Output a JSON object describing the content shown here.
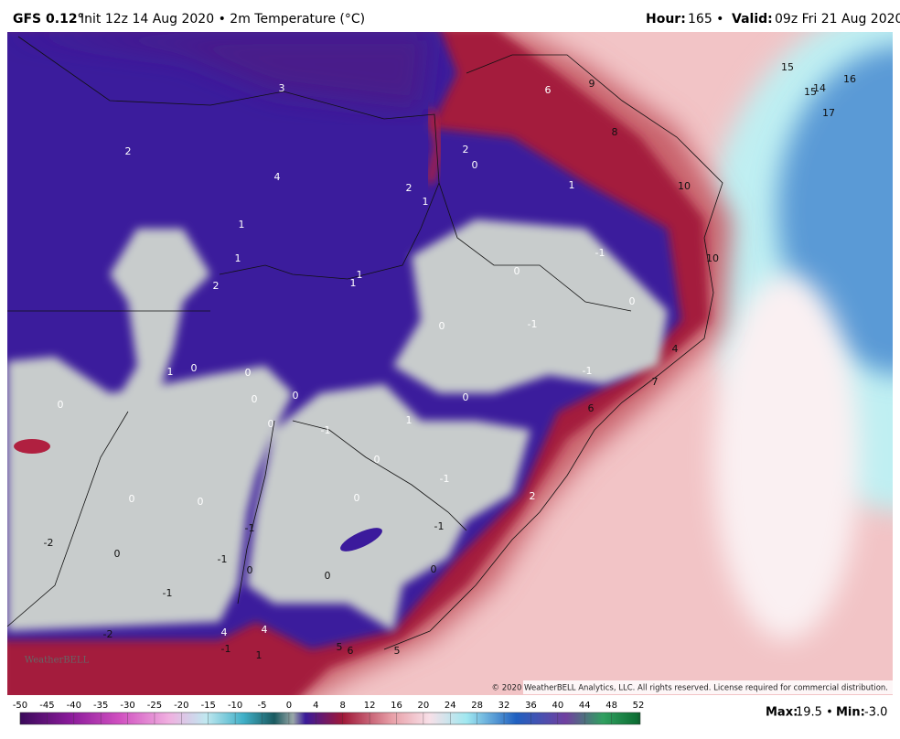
{
  "header": {
    "model": "GFS 0.12°",
    "info": "Init 12z 14 Aug 2020 • 2m Temperature (°C)",
    "hour_label": "Hour:",
    "hour": "165 •",
    "valid_label": "Valid:",
    "valid": "09z Fri 21 Aug 2020"
  },
  "map_labels": [
    "3",
    "6",
    "9",
    "8",
    "2",
    "2",
    "0",
    "4",
    "2",
    "1",
    "10",
    "1",
    "15",
    "14",
    "15",
    "16",
    "17",
    "1",
    "-1",
    "1",
    "0",
    "10",
    "1",
    "1",
    "2",
    "0",
    "0",
    "-1",
    "4",
    "1",
    "0",
    "0",
    "-1",
    "7",
    "0",
    "0",
    "0",
    "0",
    "6",
    "1",
    "-1",
    "0",
    "0",
    "-1",
    "0",
    "0",
    "0",
    "2",
    "-1",
    "-1",
    "-2",
    "0",
    "-1",
    "0",
    "0",
    "0",
    "-1",
    "4",
    "4",
    "-2",
    "5",
    "6",
    "5",
    "-1",
    "1"
  ],
  "logo": "WeatherBELL",
  "copyright": "© 2020 WeatherBELL Analytics, LLC. All rights reserved. License required for commercial distribution.",
  "colorbar": {
    "ticks": [
      -50,
      -45,
      -40,
      -35,
      -30,
      -25,
      -20,
      -15,
      -10,
      -5,
      0,
      4,
      8,
      12,
      16,
      20,
      24,
      28,
      32,
      36,
      40,
      44,
      48,
      52
    ]
  },
  "footer": {
    "max_label": "Max:",
    "max": "19.5 •",
    "min_label": "Min:",
    "min": "-3.0"
  }
}
